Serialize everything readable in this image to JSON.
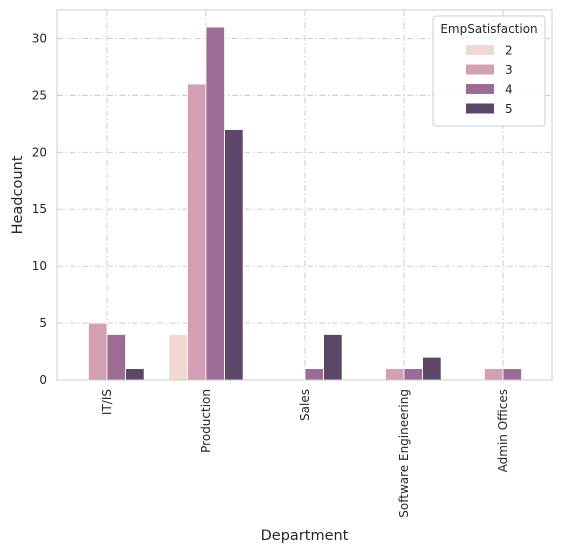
{
  "chart_data": {
    "type": "bar",
    "title": "",
    "xlabel": "Department",
    "ylabel": "Headcount",
    "ylim": [
      0,
      32.5
    ],
    "yticks": [
      0,
      5,
      10,
      15,
      20,
      25,
      30
    ],
    "grid": true,
    "legend": {
      "title": "EmpSatisfaction",
      "placement": "top-right"
    },
    "categories": [
      "IT/IS",
      "Production",
      "Sales",
      "Software Engineering",
      "Admin Offices"
    ],
    "series": [
      {
        "name": "2",
        "color": "#efd9d0",
        "values": [
          0,
          4,
          0,
          0,
          0
        ]
      },
      {
        "name": "3",
        "color": "#d29fb3",
        "values": [
          5,
          26,
          0,
          1,
          1
        ]
      },
      {
        "name": "4",
        "color": "#9c6c96",
        "values": [
          4,
          31,
          1,
          1,
          1
        ]
      },
      {
        "name": "5",
        "color": "#5c4768",
        "values": [
          1,
          22,
          4,
          2,
          0
        ]
      }
    ]
  }
}
